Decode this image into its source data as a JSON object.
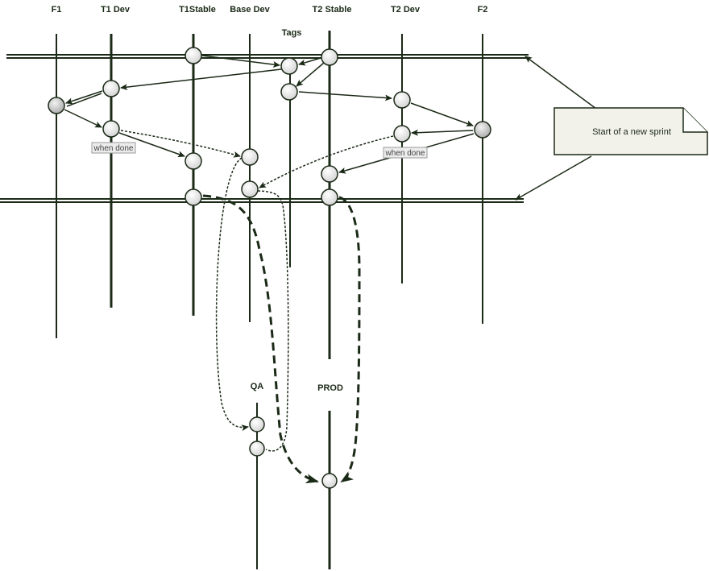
{
  "diagram": {
    "lanes": {
      "f1": "F1",
      "t1_dev": "T1 Dev",
      "t1_stable": "T1Stable",
      "base_dev": "Base Dev",
      "tags": "Tags",
      "t2_stable": "T2 Stable",
      "t2_dev": "T2 Dev",
      "f2": "F2",
      "qa": "QA",
      "prod": "PROD"
    },
    "labels": {
      "when_done_t1": "when done",
      "when_done_t2": "when done"
    },
    "note": {
      "text": "Start of a new sprint"
    },
    "colors": {
      "line": "#1b2a17",
      "node_fill": "#e6e6e6",
      "note_fill": "#f2f1ea"
    }
  }
}
